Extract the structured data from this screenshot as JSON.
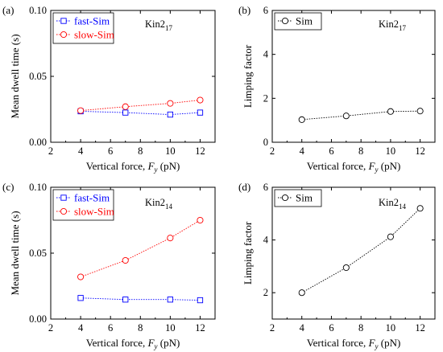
{
  "chart_data": [
    {
      "panel": "(a)",
      "type": "line",
      "annotation": "Kin2",
      "annotation_sub": "17",
      "xlabel_prefix": "Vertical force, ",
      "xlabel_var": "F",
      "xlabel_sub": "y",
      "xlabel_unit": " (pN)",
      "ylabel": "Mean dwell time (s)",
      "xlim": [
        2,
        13
      ],
      "ylim": [
        0,
        0.1
      ],
      "xticks": [
        "2",
        "4",
        "6",
        "8",
        "10",
        "12"
      ],
      "yticks": [
        "0.00",
        "0.05",
        "0.10"
      ],
      "legend": "top-left",
      "series": [
        {
          "name": "fast-Sim",
          "color": "#0000ff",
          "marker": "square",
          "x": [
            4,
            7,
            10,
            12
          ],
          "y": [
            0.0235,
            0.0225,
            0.021,
            0.0225
          ]
        },
        {
          "name": "slow-Sim",
          "color": "#ff0000",
          "marker": "circle",
          "x": [
            4,
            7,
            10,
            12
          ],
          "y": [
            0.024,
            0.027,
            0.0295,
            0.032
          ]
        }
      ]
    },
    {
      "panel": "(b)",
      "type": "line",
      "annotation": "Kin2",
      "annotation_sub": "17",
      "xlabel_prefix": "Vertical force, ",
      "xlabel_var": "F",
      "xlabel_sub": "y",
      "xlabel_unit": " (pN)",
      "ylabel": "Limping factor",
      "xlim": [
        2,
        13
      ],
      "ylim": [
        0,
        6
      ],
      "xticks": [
        "2",
        "4",
        "6",
        "8",
        "10",
        "12"
      ],
      "yticks": [
        "0",
        "2",
        "4",
        "6"
      ],
      "legend": "top-left",
      "series": [
        {
          "name": "Sim",
          "color": "#000000",
          "marker": "circle",
          "x": [
            4,
            7,
            10,
            12
          ],
          "y": [
            1.03,
            1.2,
            1.4,
            1.42
          ]
        }
      ]
    },
    {
      "panel": "(c)",
      "type": "line",
      "annotation": "Kin2",
      "annotation_sub": "14",
      "xlabel_prefix": "Vertical force, ",
      "xlabel_var": "F",
      "xlabel_sub": "y",
      "xlabel_unit": " (pN)",
      "ylabel": "Mean dwell time (s)",
      "xlim": [
        2,
        13
      ],
      "ylim": [
        0,
        0.1
      ],
      "xticks": [
        "2",
        "4",
        "6",
        "8",
        "10",
        "12"
      ],
      "yticks": [
        "0.00",
        "0.05",
        "0.10"
      ],
      "legend": "top-left",
      "series": [
        {
          "name": "fast-Sim",
          "color": "#0000ff",
          "marker": "square",
          "x": [
            4,
            7,
            10,
            12
          ],
          "y": [
            0.016,
            0.0148,
            0.0148,
            0.0143
          ]
        },
        {
          "name": "slow-Sim",
          "color": "#ff0000",
          "marker": "circle",
          "x": [
            4,
            7,
            10,
            12
          ],
          "y": [
            0.032,
            0.0445,
            0.0615,
            0.075
          ]
        }
      ]
    },
    {
      "panel": "(d)",
      "type": "line",
      "annotation": "Kin2",
      "annotation_sub": "14",
      "xlabel_prefix": "Vertical force, ",
      "xlabel_var": "F",
      "xlabel_sub": "y",
      "xlabel_unit": " (pN)",
      "ylabel": "Limping factor",
      "xlim": [
        2,
        13
      ],
      "ylim": [
        1,
        6
      ],
      "xticks": [
        "2",
        "4",
        "6",
        "8",
        "10",
        "12"
      ],
      "yticks": [
        "2",
        "4",
        "6"
      ],
      "legend": "top-left",
      "series": [
        {
          "name": "Sim",
          "color": "#000000",
          "marker": "circle",
          "x": [
            4,
            7,
            10,
            12
          ],
          "y": [
            2.0,
            2.95,
            4.12,
            5.2
          ]
        }
      ]
    }
  ]
}
